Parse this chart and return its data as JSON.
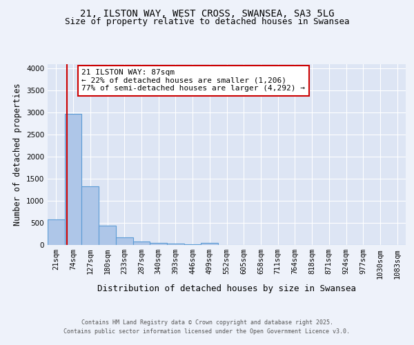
{
  "title_line1": "21, ILSTON WAY, WEST CROSS, SWANSEA, SA3 5LG",
  "title_line2": "Size of property relative to detached houses in Swansea",
  "categories": [
    "21sqm",
    "74sqm",
    "127sqm",
    "180sqm",
    "233sqm",
    "287sqm",
    "340sqm",
    "393sqm",
    "446sqm",
    "499sqm",
    "552sqm",
    "605sqm",
    "658sqm",
    "711sqm",
    "764sqm",
    "818sqm",
    "871sqm",
    "924sqm",
    "977sqm",
    "1030sqm",
    "1083sqm"
  ],
  "values": [
    580,
    2970,
    1330,
    430,
    165,
    75,
    50,
    35,
    20,
    50,
    0,
    0,
    0,
    0,
    0,
    0,
    0,
    0,
    0,
    0,
    0
  ],
  "bar_color": "#aec6e8",
  "bar_edge_color": "#5b9bd5",
  "ylabel": "Number of detached properties",
  "xlabel": "Distribution of detached houses by size in Swansea",
  "ylim": [
    0,
    4100
  ],
  "yticks": [
    0,
    500,
    1000,
    1500,
    2000,
    2500,
    3000,
    3500,
    4000
  ],
  "vline_x": 1.15,
  "vline_color": "#cc0000",
  "property_name": "21 ILSTON WAY: 87sqm",
  "annotation_line2": "← 22% of detached houses are smaller (1,206)",
  "annotation_line3": "77% of semi-detached houses are larger (4,292) →",
  "annotation_box_color": "#cc0000",
  "background_color": "#eef2fa",
  "plot_background": "#dde5f4",
  "footer_line1": "Contains HM Land Registry data © Crown copyright and database right 2025.",
  "footer_line2": "Contains public sector information licensed under the Open Government Licence v3.0.",
  "title_fontsize": 10,
  "subtitle_fontsize": 9,
  "axis_label_fontsize": 8.5,
  "tick_fontsize": 7.5,
  "annotation_fontsize": 8
}
